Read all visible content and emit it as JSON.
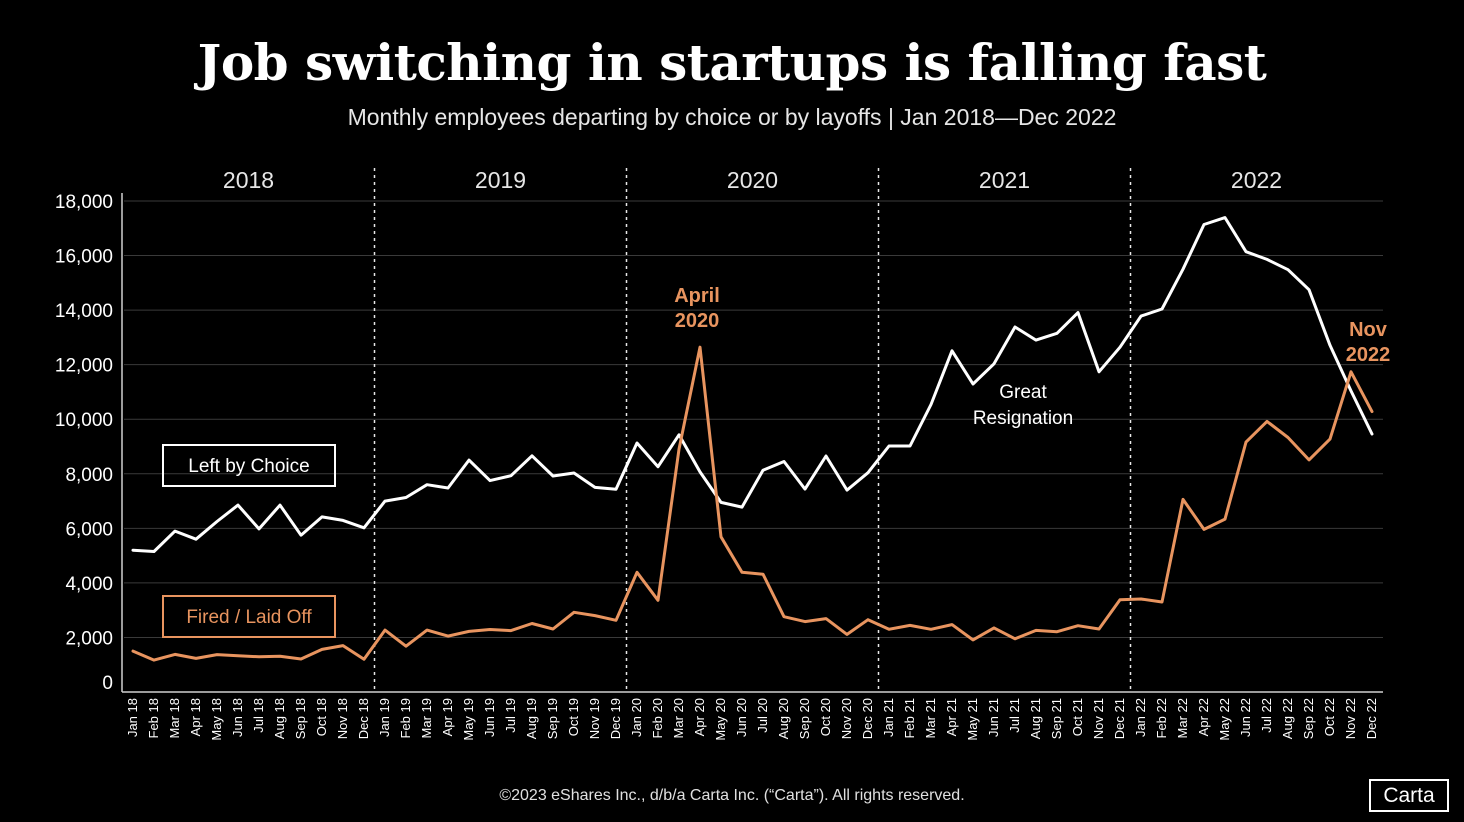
{
  "header": {
    "title": "Job switching in startups is falling fast",
    "subtitle": "Monthly employees departing by choice or  by layoffs  |  Jan 2018—Dec 2022"
  },
  "footer": {
    "copyright": "©2023 eShares Inc., d/b/a Carta Inc. (“Carta”). All rights reserved.",
    "brand": "Carta"
  },
  "colors": {
    "background": "#000000",
    "left_by_choice": "#ffffff",
    "fired": "#e8945f",
    "grid": "#3a3a3a"
  },
  "chart_data": {
    "type": "line",
    "title": "Job switching in startups is falling fast",
    "xlabel": "",
    "ylabel": "",
    "ylim": [
      0,
      18000
    ],
    "yticks": [
      0,
      2000,
      4000,
      6000,
      8000,
      10000,
      12000,
      14000,
      16000,
      18000
    ],
    "ytick_labels": [
      "0",
      "2,000",
      "4,000",
      "6,000",
      "8,000",
      "10,000",
      "12,000",
      "14,000",
      "16,000",
      "18,000"
    ],
    "grid": true,
    "years": [
      "2018",
      "2019",
      "2020",
      "2021",
      "2022"
    ],
    "x": [
      "Jan 18",
      "Feb 18",
      "Mar 18",
      "Apr 18",
      "May 18",
      "Jun 18",
      "Jul 18",
      "Aug 18",
      "Sep 18",
      "Oct 18",
      "Nov 18",
      "Dec 18",
      "Jan 19",
      "Feb 19",
      "Mar 19",
      "Apr 19",
      "May 19",
      "Jun 19",
      "Jul 19",
      "Aug 19",
      "Sep 19",
      "Oct 19",
      "Nov 19",
      "Dec 19",
      "Jan 20",
      "Feb 20",
      "Mar 20",
      "Apr 20",
      "May 20",
      "Jun 20",
      "Jul 20",
      "Aug 20",
      "Sep 20",
      "Oct 20",
      "Nov 20",
      "Dec 20",
      "Jan 21",
      "Feb 21",
      "Mar 21",
      "Apr 21",
      "May 21",
      "Jun 21",
      "Jul 21",
      "Aug 21",
      "Sep 21",
      "Oct 21",
      "Nov 21",
      "Dec 21",
      "Jan 22",
      "Feb 22",
      "Mar 22",
      "Apr 22",
      "May 22",
      "Jun 22",
      "Jul 22",
      "Aug 22",
      "Sep 22",
      "Oct 22",
      "Nov 22",
      "Dec 22"
    ],
    "series": [
      {
        "name": "Left by Choice",
        "values": [
          5200,
          5150,
          5900,
          5600,
          6250,
          6850,
          5980,
          6850,
          5750,
          6420,
          6290,
          6020,
          7000,
          7130,
          7600,
          7480,
          8500,
          7750,
          7930,
          8660,
          7920,
          8030,
          7500,
          7430,
          9130,
          8260,
          9430,
          8070,
          6950,
          6780,
          8130,
          8450,
          7440,
          8650,
          7400,
          8040,
          9020,
          9020,
          10540,
          12510,
          11290,
          12030,
          13380,
          12900,
          13150,
          13910,
          11740,
          12640,
          13780,
          14040,
          15500,
          17140,
          17390,
          16140,
          15860,
          15480,
          14750,
          12710,
          11040,
          9460
        ]
      },
      {
        "name": "Fired / Laid Off",
        "values": [
          1500,
          1170,
          1380,
          1230,
          1370,
          1330,
          1290,
          1310,
          1210,
          1560,
          1700,
          1200,
          2270,
          1680,
          2270,
          2050,
          2220,
          2290,
          2250,
          2510,
          2310,
          2920,
          2800,
          2630,
          4390,
          3360,
          8900,
          12640,
          5690,
          4390,
          4320,
          2760,
          2580,
          2690,
          2110,
          2650,
          2300,
          2440,
          2300,
          2470,
          1910,
          2350,
          1950,
          2260,
          2210,
          2430,
          2310,
          3380,
          3410,
          3300,
          7060,
          5960,
          6340,
          9160,
          9920,
          9330,
          8510,
          9270,
          11740,
          10280
        ]
      }
    ],
    "legend": [
      "Left by Choice",
      "Fired / Laid Off"
    ],
    "annotations": [
      {
        "id": "april-2020",
        "lines": [
          "April",
          "2020"
        ],
        "color": "#e8945f"
      },
      {
        "id": "nov-2022",
        "lines": [
          "Nov",
          "2022"
        ],
        "color": "#e8945f"
      },
      {
        "id": "great-resignation",
        "lines": [
          "Great",
          "Resignation"
        ],
        "color": "#ffffff"
      }
    ]
  }
}
